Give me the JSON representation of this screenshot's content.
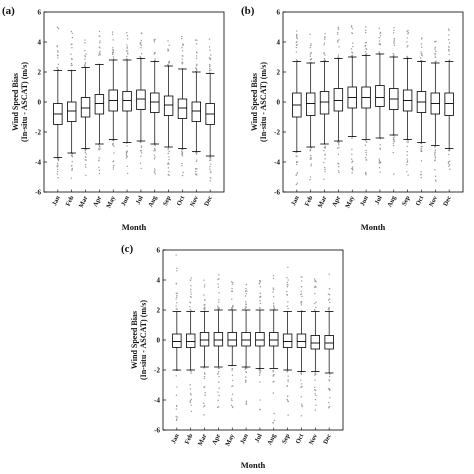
{
  "chart_data": [
    {
      "type": "box",
      "panel_label": "(a)",
      "categories": [
        "Jan",
        "Feb",
        "Mar",
        "Apr",
        "May",
        "Jun",
        "Jul",
        "Aug",
        "Sep",
        "Oct",
        "Nov",
        "Dec"
      ],
      "ylabel_line1": "Wind Speed Bias",
      "ylabel_line2": "(In-situ - ASCAT) (m/s)",
      "xlabel": "Month",
      "ylim": [
        -6,
        6
      ],
      "yticks": [
        "-6",
        "-4",
        "-2",
        "0",
        "2",
        "4",
        "6"
      ],
      "boxes": [
        {
          "whisker_low": -3.7,
          "q1": -1.5,
          "median": -0.8,
          "q3": -0.1,
          "whisker_high": 2.1,
          "outlier_low": -5.8,
          "outlier_high": 5.2
        },
        {
          "whisker_low": -3.4,
          "q1": -1.3,
          "median": -0.6,
          "q3": 0.0,
          "whisker_high": 2.1,
          "outlier_low": -5.4,
          "outlier_high": 4.9
        },
        {
          "whisker_low": -3.1,
          "q1": -1.0,
          "median": -0.4,
          "q3": 0.3,
          "whisker_high": 2.3,
          "outlier_low": -5.2,
          "outlier_high": 4.7
        },
        {
          "whisker_low": -2.8,
          "q1": -0.8,
          "median": -0.1,
          "q3": 0.5,
          "whisker_high": 2.5,
          "outlier_low": -4.9,
          "outlier_high": 4.8
        },
        {
          "whisker_low": -2.5,
          "q1": -0.6,
          "median": 0.1,
          "q3": 0.8,
          "whisker_high": 2.8,
          "outlier_low": -4.6,
          "outlier_high": 5.0
        },
        {
          "whisker_low": -2.7,
          "q1": -0.6,
          "median": 0.1,
          "q3": 0.7,
          "whisker_high": 2.8,
          "outlier_low": -4.9,
          "outlier_high": 5.0
        },
        {
          "whisker_low": -2.6,
          "q1": -0.5,
          "median": 0.2,
          "q3": 0.8,
          "whisker_high": 2.9,
          "outlier_low": -4.8,
          "outlier_high": 5.1
        },
        {
          "whisker_low": -2.8,
          "q1": -0.7,
          "median": 0.0,
          "q3": 0.6,
          "whisker_high": 2.7,
          "outlier_low": -4.9,
          "outlier_high": 4.9
        },
        {
          "whisker_low": -3.0,
          "q1": -0.9,
          "median": -0.2,
          "q3": 0.4,
          "whisker_high": 2.4,
          "outlier_low": -5.0,
          "outlier_high": 4.6
        },
        {
          "whisker_low": -3.1,
          "q1": -1.1,
          "median": -0.4,
          "q3": 0.2,
          "whisker_high": 2.2,
          "outlier_low": -5.2,
          "outlier_high": 4.4
        },
        {
          "whisker_low": -3.3,
          "q1": -1.3,
          "median": -0.6,
          "q3": 0.0,
          "whisker_high": 2.0,
          "outlier_low": -5.5,
          "outlier_high": 4.2
        },
        {
          "whisker_low": -3.6,
          "q1": -1.5,
          "median": -0.8,
          "q3": -0.1,
          "whisker_high": 1.9,
          "outlier_low": -5.7,
          "outlier_high": 4.3
        }
      ]
    },
    {
      "type": "box",
      "panel_label": "(b)",
      "categories": [
        "Jan",
        "Feb",
        "Mar",
        "Apr",
        "May",
        "Jun",
        "Jul",
        "Aug",
        "Sep",
        "Oct",
        "Nov",
        "Dec"
      ],
      "ylabel_line1": "Wind Speed Bias",
      "ylabel_line2": "(In-situ - ASCAT) (m/s)",
      "xlabel": "Month",
      "ylim": [
        -6,
        6
      ],
      "yticks": [
        "-6",
        "-4",
        "-2",
        "0",
        "2",
        "4",
        "6"
      ],
      "boxes": [
        {
          "whisker_low": -3.3,
          "q1": -1.0,
          "median": -0.2,
          "q3": 0.6,
          "whisker_high": 2.7,
          "outlier_low": -5.6,
          "outlier_high": 5.0
        },
        {
          "whisker_low": -3.0,
          "q1": -0.9,
          "median": -0.1,
          "q3": 0.6,
          "whisker_high": 2.6,
          "outlier_low": -5.3,
          "outlier_high": 4.8
        },
        {
          "whisker_low": -2.8,
          "q1": -0.8,
          "median": 0.0,
          "q3": 0.7,
          "whisker_high": 2.7,
          "outlier_low": -5.2,
          "outlier_high": 4.7
        },
        {
          "whisker_low": -2.6,
          "q1": -0.6,
          "median": 0.1,
          "q3": 0.9,
          "whisker_high": 2.9,
          "outlier_low": -5.0,
          "outlier_high": 5.0
        },
        {
          "whisker_low": -2.3,
          "q1": -0.4,
          "median": 0.3,
          "q3": 1.0,
          "whisker_high": 3.0,
          "outlier_low": -4.8,
          "outlier_high": 5.2
        },
        {
          "whisker_low": -2.5,
          "q1": -0.4,
          "median": 0.3,
          "q3": 1.0,
          "whisker_high": 3.1,
          "outlier_low": -4.9,
          "outlier_high": 5.1
        },
        {
          "whisker_low": -2.4,
          "q1": -0.3,
          "median": 0.3,
          "q3": 1.1,
          "whisker_high": 3.2,
          "outlier_low": -4.8,
          "outlier_high": 5.3
        },
        {
          "whisker_low": -2.2,
          "q1": -0.5,
          "median": 0.2,
          "q3": 0.9,
          "whisker_high": 3.0,
          "outlier_low": -4.9,
          "outlier_high": 5.0
        },
        {
          "whisker_low": -2.5,
          "q1": -0.6,
          "median": 0.1,
          "q3": 0.8,
          "whisker_high": 2.9,
          "outlier_low": -5.0,
          "outlier_high": 4.8
        },
        {
          "whisker_low": -2.7,
          "q1": -0.7,
          "median": 0.0,
          "q3": 0.7,
          "whisker_high": 2.7,
          "outlier_low": -5.1,
          "outlier_high": 4.7
        },
        {
          "whisker_low": -2.9,
          "q1": -0.8,
          "median": -0.1,
          "q3": 0.6,
          "whisker_high": 2.6,
          "outlier_low": -5.3,
          "outlier_high": 4.6
        },
        {
          "whisker_low": -3.1,
          "q1": -0.9,
          "median": -0.1,
          "q3": 0.6,
          "whisker_high": 2.7,
          "outlier_low": -5.5,
          "outlier_high": 4.9
        }
      ]
    },
    {
      "type": "box",
      "panel_label": "(c)",
      "categories": [
        "Jan",
        "Feb",
        "Mar",
        "Apr",
        "May",
        "Jun",
        "Jul",
        "Aug",
        "Sep",
        "Oct",
        "Nov",
        "Dec"
      ],
      "ylabel_line1": "Wind Speed Bias",
      "ylabel_line2": "(In-situ - ASCAT) (m/s)",
      "xlabel": "Month",
      "ylim": [
        -6,
        6
      ],
      "yticks": [
        "-6",
        "-4",
        "-2",
        "0",
        "2",
        "4",
        "6"
      ],
      "boxes": [
        {
          "whisker_low": -2.0,
          "q1": -0.5,
          "median": -0.1,
          "q3": 0.4,
          "whisker_high": 1.9,
          "outlier_low": -5.5,
          "outlier_high": 5.7
        },
        {
          "whisker_low": -2.0,
          "q1": -0.5,
          "median": -0.1,
          "q3": 0.4,
          "whisker_high": 1.9,
          "outlier_low": -5.2,
          "outlier_high": 4.5
        },
        {
          "whisker_low": -1.8,
          "q1": -0.4,
          "median": 0.0,
          "q3": 0.5,
          "whisker_high": 1.9,
          "outlier_low": -5.0,
          "outlier_high": 4.3
        },
        {
          "whisker_low": -1.8,
          "q1": -0.4,
          "median": 0.0,
          "q3": 0.5,
          "whisker_high": 2.0,
          "outlier_low": -4.8,
          "outlier_high": 4.6
        },
        {
          "whisker_low": -1.7,
          "q1": -0.4,
          "median": 0.0,
          "q3": 0.5,
          "whisker_high": 2.0,
          "outlier_low": -4.7,
          "outlier_high": 4.5
        },
        {
          "whisker_low": -1.8,
          "q1": -0.4,
          "median": 0.0,
          "q3": 0.5,
          "whisker_high": 2.0,
          "outlier_low": -4.9,
          "outlier_high": 4.4
        },
        {
          "whisker_low": -1.9,
          "q1": -0.4,
          "median": 0.0,
          "q3": 0.5,
          "whisker_high": 2.0,
          "outlier_low": -4.9,
          "outlier_high": 4.7
        },
        {
          "whisker_low": -1.9,
          "q1": -0.4,
          "median": 0.0,
          "q3": 0.5,
          "whisker_high": 2.0,
          "outlier_low": -5.6,
          "outlier_high": 4.3
        },
        {
          "whisker_low": -2.0,
          "q1": -0.5,
          "median": -0.1,
          "q3": 0.4,
          "whisker_high": 1.9,
          "outlier_low": -5.1,
          "outlier_high": 4.9
        },
        {
          "whisker_low": -2.1,
          "q1": -0.5,
          "median": -0.1,
          "q3": 0.4,
          "whisker_high": 1.9,
          "outlier_low": -5.2,
          "outlier_high": 4.4
        },
        {
          "whisker_low": -2.1,
          "q1": -0.6,
          "median": -0.2,
          "q3": 0.3,
          "whisker_high": 1.9,
          "outlier_low": -5.3,
          "outlier_high": 4.2
        },
        {
          "whisker_low": -2.2,
          "q1": -0.6,
          "median": -0.2,
          "q3": 0.3,
          "whisker_high": 1.9,
          "outlier_low": -5.4,
          "outlier_high": 4.4
        }
      ]
    }
  ]
}
